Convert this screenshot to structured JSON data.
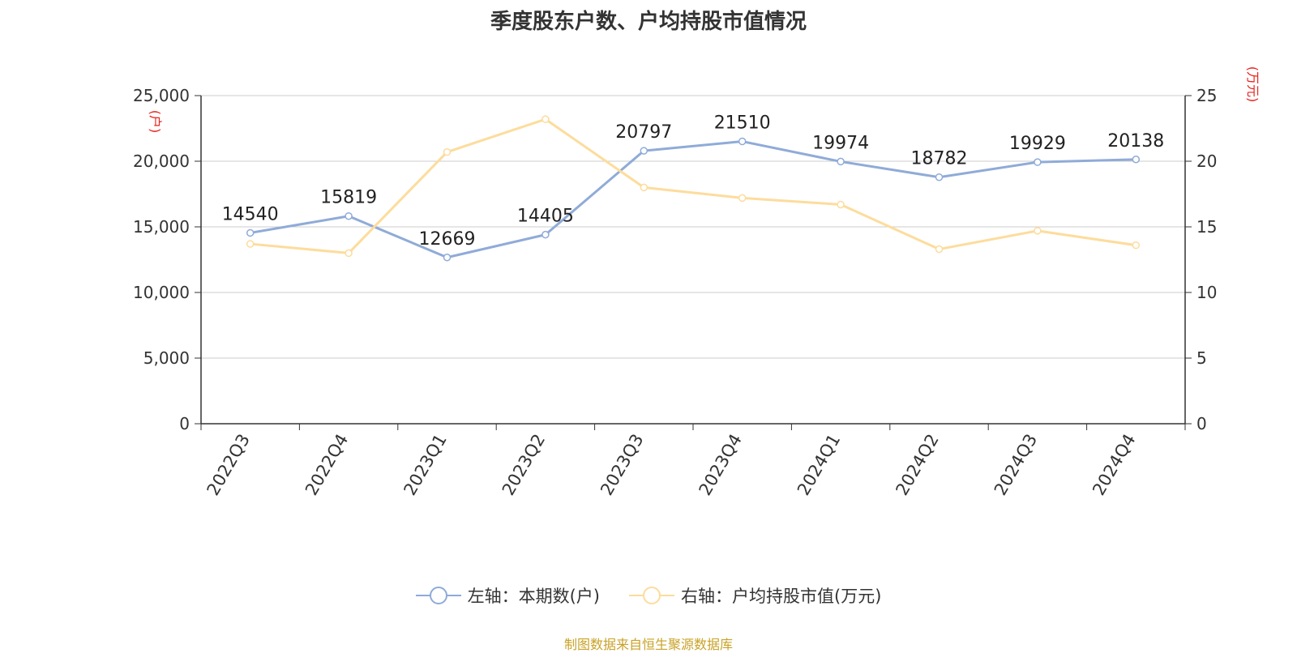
{
  "chart_data": {
    "type": "line",
    "title": "季度股东户数、户均持股市值情况",
    "categories": [
      "2022Q3",
      "2022Q4",
      "2023Q1",
      "2023Q2",
      "2023Q3",
      "2023Q4",
      "2024Q1",
      "2024Q2",
      "2024Q3",
      "2024Q4"
    ],
    "left_axis": {
      "unit_label": "(户)",
      "ylim": [
        0,
        25000
      ],
      "ticks": [
        "0",
        "5,000",
        "10,000",
        "15,000",
        "20,000",
        "25,000"
      ]
    },
    "right_axis": {
      "unit_label": "(万元)",
      "ylim": [
        0,
        25
      ],
      "ticks": [
        "0",
        "5",
        "10",
        "15",
        "20",
        "25"
      ]
    },
    "series": [
      {
        "name": "左轴：本期数(户)",
        "axis": "left",
        "color": "#8fabd8",
        "values": [
          14540,
          15819,
          12669,
          14405,
          20797,
          21510,
          19974,
          18782,
          19929,
          20138
        ],
        "labels": [
          "14540",
          "15819",
          "12669",
          "14405",
          "20797",
          "21510",
          "19974",
          "18782",
          "19929",
          "20138"
        ]
      },
      {
        "name": "右轴：户均持股市值(万元)",
        "axis": "right",
        "color": "#fddc9c",
        "values": [
          13.7,
          13.0,
          20.7,
          23.2,
          18.0,
          17.2,
          16.7,
          13.3,
          14.7,
          13.6
        ]
      }
    ],
    "grid": true,
    "legend_position": "bottom",
    "source": "制图数据来自恒生聚源数据库"
  },
  "colors": {
    "axis_unit": "#e8211b",
    "source": "#c9a227",
    "grid": "#cccccc"
  }
}
